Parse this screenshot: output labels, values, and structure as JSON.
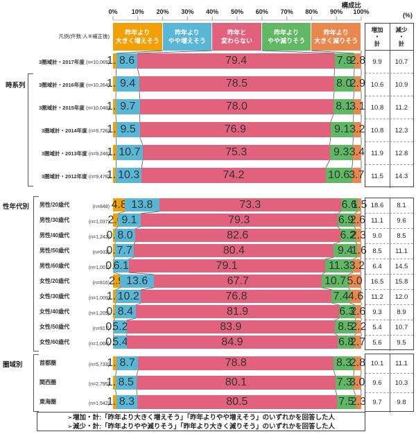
{
  "header": {
    "axis_title": "構成比",
    "percent_label": "(%)",
    "ticks": [
      "0%",
      "10%",
      "20%",
      "30%",
      "40%",
      "50%",
      "60%",
      "70%",
      "80%",
      "90%",
      "100%"
    ],
    "legend_caption": "凡例(件数:人※補正後)",
    "legend": [
      {
        "label": "昨年より\n大きく増えそう",
        "color": "#F1A107"
      },
      {
        "label": "昨年より\nやや増えそう",
        "color": "#58B7D7"
      },
      {
        "label": "昨年と\n変わらない",
        "color": "#E2627E"
      },
      {
        "label": "昨年より\nやや減りそう",
        "color": "#5FB863"
      },
      {
        "label": "昨年より\n大きく減りそう",
        "color": "#E8874E"
      }
    ],
    "table_headers": [
      "増加・計",
      "減少・計"
    ]
  },
  "groups": [
    {
      "name": "時系列",
      "rows": [
        {
          "label": "3圏域計・2017年度",
          "n": "(n=10,069)",
          "values": [
            1.3,
            8.6,
            79.4,
            7.9,
            2.8
          ],
          "increase": "9.9",
          "decrease": "10.7"
        },
        {
          "label": "3圏域計・2016年度",
          "n": "(n=10,264)",
          "values": [
            1.2,
            9.4,
            78.5,
            8.0,
            2.9
          ],
          "increase": "10.6",
          "decrease": "10.9"
        },
        {
          "label": "3圏域計・2015年度",
          "n": "(n=10,048)",
          "values": [
            1.1,
            9.7,
            78.0,
            8.1,
            3.1
          ],
          "increase": "10.8",
          "decrease": "11.2"
        },
        {
          "label": "3圏域計・2014年度",
          "n": "(n=9,726)",
          "values": [
            1.3,
            9.5,
            76.9,
            9.1,
            3.2
          ],
          "increase": "10.8",
          "decrease": "12.3"
        },
        {
          "label": "3圏域計・2013年度",
          "n": "(n=9,248)",
          "values": [
            1.3,
            10.7,
            75.3,
            9.3,
            3.4
          ],
          "increase": "11.9",
          "decrease": "12.8"
        },
        {
          "label": "3圏域計・2012年度",
          "n": "(n=9,478)",
          "values": [
            1.2,
            10.3,
            74.2,
            10.6,
            3.7
          ],
          "increase": "11.5",
          "decrease": "14.3"
        }
      ]
    },
    {
      "name": "性年代別",
      "rows": [
        {
          "label": "男性/20歳代",
          "n": "(n=848)",
          "values": [
            4.8,
            13.8,
            73.3,
            6.6,
            1.5
          ],
          "increase": "18.6",
          "decrease": "8.1"
        },
        {
          "label": "男性/30歳代",
          "n": "(n=1,037)",
          "values": [
            2.0,
            9.1,
            79.3,
            6.9,
            2.6
          ],
          "increase": "11.1",
          "decrease": "9.6"
        },
        {
          "label": "男性/40歳代",
          "n": "(n=1,242)",
          "values": [
            0.9,
            8.0,
            82.6,
            6.2,
            2.3
          ],
          "increase": "9.0",
          "decrease": "8.5"
        },
        {
          "label": "男性/50歳代",
          "n": "(n=933)",
          "values": [
            0.8,
            7.7,
            80.4,
            9.4,
            1.6
          ],
          "increase": "8.5",
          "decrease": "11.1"
        },
        {
          "label": "男性/60歳代",
          "n": "(n=1,001)",
          "values": [
            0.2,
            6.1,
            79.1,
            11.3,
            3.2
          ],
          "increase": "6.4",
          "decrease": "14.5"
        },
        {
          "label": "女性/20歳代",
          "n": "(n=816)",
          "values": [
            2.9,
            13.6,
            67.7,
            10.7,
            5.0
          ],
          "increase": "16.5",
          "decrease": "15.8"
        },
        {
          "label": "女性/30歳代",
          "n": "(n=1,009)",
          "values": [
            1.1,
            10.2,
            76.8,
            7.4,
            4.6
          ],
          "increase": "11.2",
          "decrease": "12.0"
        },
        {
          "label": "女性/40歳代",
          "n": "(n=1,205)",
          "values": [
            0.8,
            8.4,
            81.9,
            6.3,
            2.6
          ],
          "increase": "9.3",
          "decrease": "8.9"
        },
        {
          "label": "女性/50歳代",
          "n": "(n=917)",
          "values": [
            0.3,
            5.2,
            83.9,
            8.5,
            2.2
          ],
          "increase": "5.4",
          "decrease": "10.7"
        },
        {
          "label": "女性/60歳代",
          "n": "(n=1,060)",
          "values": [
            0.2,
            5.4,
            84.9,
            6.8,
            2.7
          ],
          "increase": "5.6",
          "decrease": "9.5"
        }
      ]
    },
    {
      "name": "圏域別",
      "rows": [
        {
          "label": "首都圏",
          "n": "(n=5,733)",
          "values": [
            1.4,
            8.7,
            78.8,
            8.3,
            2.8
          ],
          "increase": "10.1",
          "decrease": "11.1"
        },
        {
          "label": "関西圏",
          "n": "(n=2,795)",
          "values": [
            1.0,
            8.5,
            80.1,
            7.3,
            3.0
          ],
          "increase": "9.6",
          "decrease": "10.3"
        },
        {
          "label": "東海圏",
          "n": "(n=1,542)",
          "values": [
            1.4,
            8.3,
            80.5,
            7.5,
            2.3
          ],
          "increase": "9.7",
          "decrease": "9.8"
        }
      ]
    }
  ],
  "footer": {
    "lines": [
      "➢増加・計:「昨年より大きく増えそう」「昨年よりやや増えそう」のいずれかを回答した人",
      "➢減少・計:「昨年よりやや減りそう」「昨年より大きく減りそう」のいずれかを回答した人"
    ]
  },
  "chart_data": {
    "type": "bar",
    "variant": "stacked-horizontal-percent",
    "title": "構成比",
    "unit": "%",
    "xlim": [
      0,
      100
    ],
    "segments": [
      "昨年より大きく増えそう",
      "昨年よりやや増えそう",
      "昨年と変わらない",
      "昨年よりやや減りそう",
      "昨年より大きく減りそう"
    ],
    "segment_colors": [
      "#F1A107",
      "#58B7D7",
      "#E2627E",
      "#5FB863",
      "#E8874E"
    ],
    "categories": [
      "3圏域計・2017年度 (n=10,069)",
      "3圏域計・2016年度 (n=10,264)",
      "3圏域計・2015年度 (n=10,048)",
      "3圏域計・2014年度 (n=9,726)",
      "3圏域計・2013年度 (n=9,248)",
      "3圏域計・2012年度 (n=9,478)",
      "男性/20歳代 (n=848)",
      "男性/30歳代 (n=1,037)",
      "男性/40歳代 (n=1,242)",
      "男性/50歳代 (n=933)",
      "男性/60歳代 (n=1,001)",
      "女性/20歳代 (n=816)",
      "女性/30歳代 (n=1,009)",
      "女性/40歳代 (n=1,205)",
      "女性/50歳代 (n=917)",
      "女性/60歳代 (n=1,060)",
      "首都圏 (n=5,733)",
      "関西圏 (n=2,795)",
      "東海圏 (n=1,542)"
    ],
    "values": [
      [
        1.3,
        8.6,
        79.4,
        7.9,
        2.8
      ],
      [
        1.2,
        9.4,
        78.5,
        8.0,
        2.9
      ],
      [
        1.1,
        9.7,
        78.0,
        8.1,
        3.1
      ],
      [
        1.3,
        9.5,
        76.9,
        9.1,
        3.2
      ],
      [
        1.3,
        10.7,
        75.3,
        9.3,
        3.4
      ],
      [
        1.2,
        10.3,
        74.2,
        10.6,
        3.7
      ],
      [
        4.8,
        13.8,
        73.3,
        6.6,
        1.5
      ],
      [
        2.0,
        9.1,
        79.3,
        6.9,
        2.6
      ],
      [
        0.9,
        8.0,
        82.6,
        6.2,
        2.3
      ],
      [
        0.8,
        7.7,
        80.4,
        9.4,
        1.6
      ],
      [
        0.2,
        6.1,
        79.1,
        11.3,
        3.2
      ],
      [
        2.9,
        13.6,
        67.7,
        10.7,
        5.0
      ],
      [
        1.1,
        10.2,
        76.8,
        7.4,
        4.6
      ],
      [
        0.8,
        8.4,
        81.9,
        6.3,
        2.6
      ],
      [
        0.3,
        5.2,
        83.9,
        8.5,
        2.2
      ],
      [
        0.2,
        5.4,
        84.9,
        6.8,
        2.7
      ],
      [
        1.4,
        8.7,
        78.8,
        8.3,
        2.8
      ],
      [
        1.0,
        8.5,
        80.1,
        7.3,
        3.0
      ],
      [
        1.4,
        8.3,
        80.5,
        7.5,
        2.3
      ]
    ],
    "increase_total": [
      9.9,
      10.6,
      10.8,
      10.8,
      11.9,
      11.5,
      18.6,
      11.1,
      9.0,
      8.5,
      6.4,
      16.5,
      11.2,
      9.3,
      5.4,
      5.6,
      10.1,
      9.6,
      9.7
    ],
    "decrease_total": [
      10.7,
      10.9,
      11.2,
      12.3,
      12.8,
      14.3,
      8.1,
      9.6,
      8.5,
      11.1,
      14.5,
      15.8,
      12.0,
      8.9,
      10.7,
      9.5,
      11.1,
      10.3,
      9.8
    ]
  }
}
